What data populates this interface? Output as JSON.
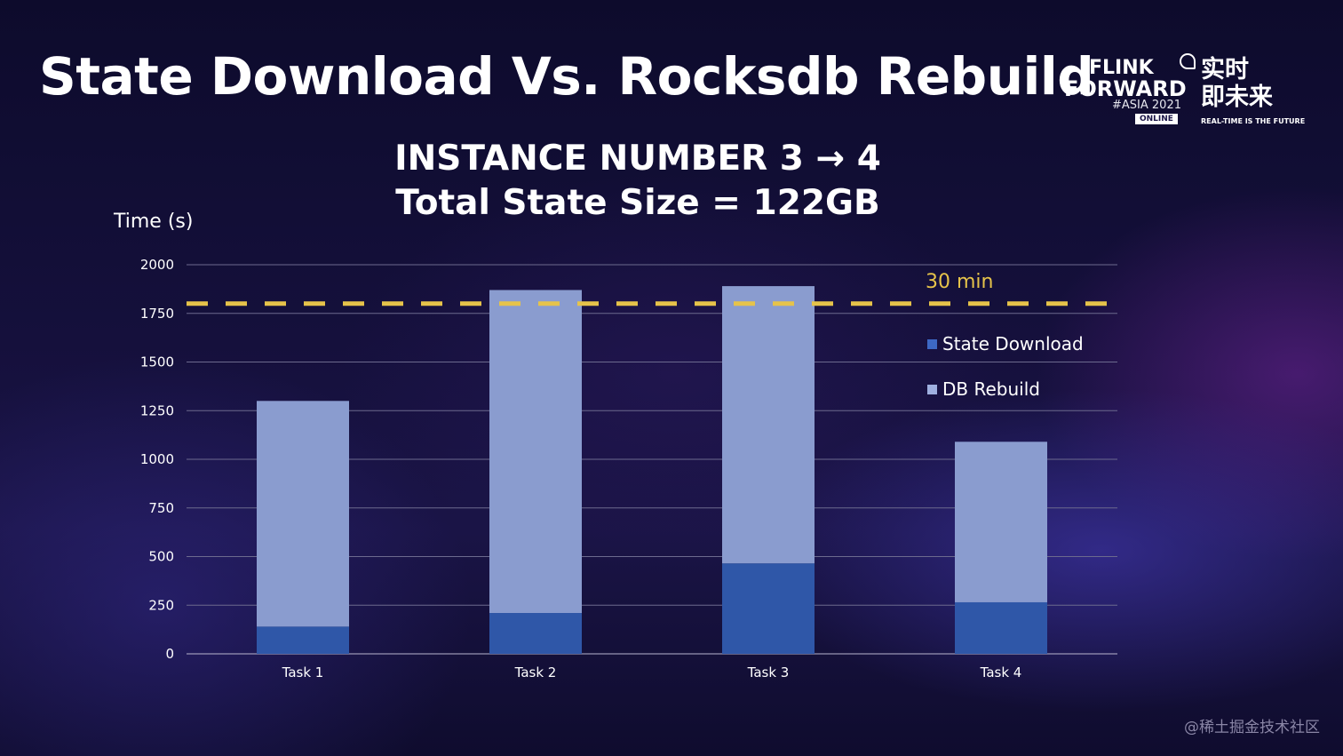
{
  "slide": {
    "title": "State Download Vs. Rocksdb Rebuild",
    "watermark": "@稀土掘金技术社区"
  },
  "logo": {
    "line1": "FLINK",
    "line2": "FORWARD",
    "line3": "#ASIA 2021",
    "badge": "ONLINE",
    "cn_line1": "实时",
    "cn_line2": "即未来",
    "tagline": "REAL-TIME IS THE FUTURE"
  },
  "chart_data": {
    "type": "bar",
    "stacked": true,
    "title": "INSTANCE NUMBER 3 → 4",
    "subtitle": "Total State Size = 122GB",
    "ylabel": "Time (s)",
    "xlabel": "",
    "categories": [
      "Task 1",
      "Task 2",
      "Task 3",
      "Task 4"
    ],
    "series": [
      {
        "name": "State Download",
        "values": [
          140,
          210,
          465,
          265
        ],
        "color": "#2f57a8"
      },
      {
        "name": "DB Rebuild",
        "values": [
          1160,
          1660,
          1425,
          825
        ],
        "color": "#8a9ccf"
      }
    ],
    "ylim": [
      0,
      2000
    ],
    "yticks": [
      0,
      250,
      500,
      750,
      1000,
      1250,
      1500,
      1750,
      2000
    ],
    "grid": true,
    "legend_position": "right",
    "reference_line": {
      "value": 1800,
      "label": "30 min",
      "color": "#e6c34a"
    }
  }
}
